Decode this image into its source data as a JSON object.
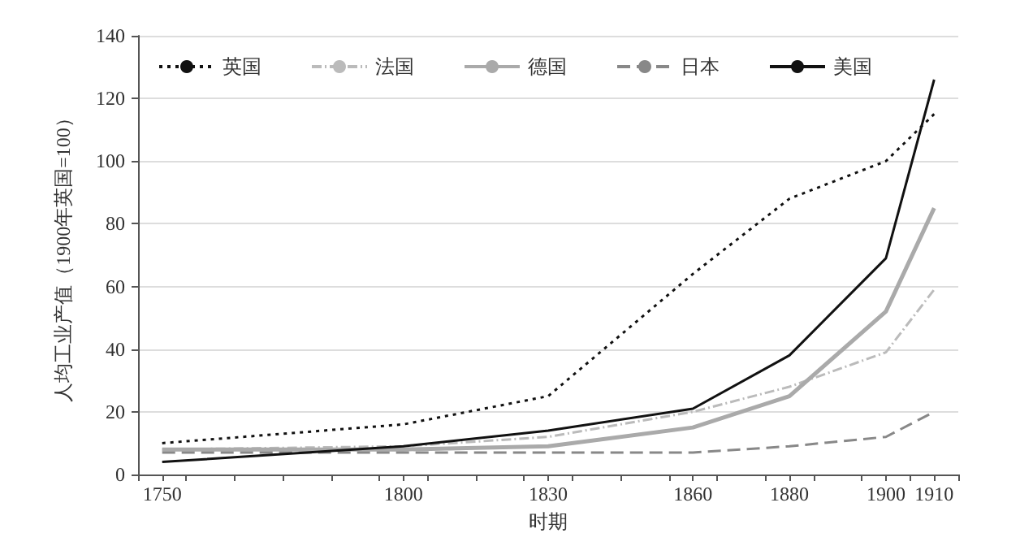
{
  "chart_data": {
    "type": "line",
    "xlabel": "时期",
    "ylabel": "人均工业产值（1900年英国=100）",
    "x": [
      1750,
      1800,
      1830,
      1860,
      1880,
      1900,
      1910
    ],
    "series": [
      {
        "name": "英国",
        "color": "#111111",
        "line_style": "dotted",
        "values": [
          10,
          16,
          25,
          64,
          88,
          100,
          115
        ]
      },
      {
        "name": "法国",
        "color": "#bbbbbb",
        "line_style": "dashdot",
        "values": [
          8,
          9,
          12,
          20,
          28,
          39,
          59
        ]
      },
      {
        "name": "德国",
        "color": "#aaaaaa",
        "line_style": "solid",
        "values": [
          8,
          8,
          9,
          15,
          25,
          52,
          85
        ]
      },
      {
        "name": "日本",
        "color": "#888888",
        "line_style": "dashed",
        "values": [
          7,
          7,
          7,
          7,
          9,
          12,
          20
        ]
      },
      {
        "name": "美国",
        "color": "#111111",
        "line_style": "solid",
        "values": [
          4,
          9,
          14,
          21,
          38,
          69,
          126
        ]
      }
    ],
    "xlim": [
      1745,
      1915
    ],
    "xticks": [
      {
        "value": 1745,
        "label": null
      },
      1750,
      {
        "value": 1755,
        "label": null
      },
      {
        "value": 1765,
        "label": null
      },
      {
        "value": 1775,
        "label": null
      },
      {
        "value": 1785,
        "label": null
      },
      {
        "value": 1795,
        "label": null
      },
      1800,
      {
        "value": 1805,
        "label": null
      },
      {
        "value": 1815,
        "label": null
      },
      {
        "value": 1825,
        "label": null
      },
      1830,
      {
        "value": 1835,
        "label": null
      },
      {
        "value": 1845,
        "label": null
      },
      {
        "value": 1855,
        "label": null
      },
      1860,
      {
        "value": 1865,
        "label": null
      },
      {
        "value": 1875,
        "label": null
      },
      1880,
      {
        "value": 1885,
        "label": null
      },
      {
        "value": 1895,
        "label": null
      },
      1900,
      {
        "value": 1905,
        "label": null
      },
      1910,
      {
        "value": 1915,
        "label": null
      }
    ],
    "ylim": [
      0,
      140
    ],
    "yticks": [
      0,
      20,
      40,
      60,
      80,
      100,
      120,
      140
    ],
    "grid": "y",
    "legend": "top left",
    "marker": "none"
  }
}
